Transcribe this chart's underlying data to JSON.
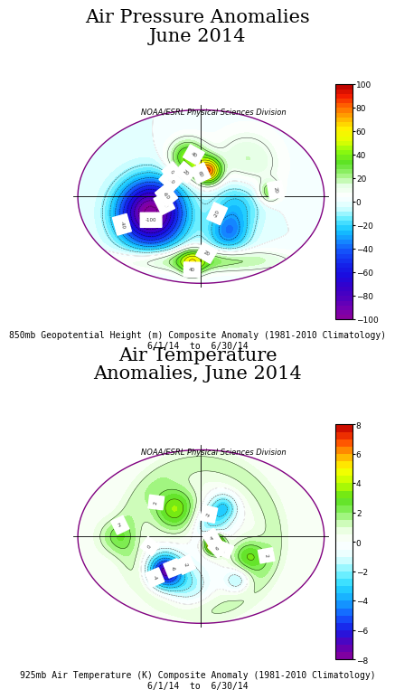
{
  "title1": "Air Pressure Anomalies\nJune 2014",
  "title2": "Air Temperature\nAnomalies, June 2014",
  "subtitle1": "NOAA/ESRL Physical Sciences Division",
  "subtitle2": "NOAA/ESRL Physical Sciences Division",
  "caption1": "850mb Geopotential Height (m) Composite Anomaly (1981-2010 Climatology)\n6/1/14  to  6/30/14",
  "caption2": "925mb Air Temperature (K) Composite Anomaly (1981-2010 Climatology)\n6/1/14  to  6/30/14",
  "cbar1_ticks": [
    100,
    80,
    60,
    40,
    20,
    0,
    -20,
    -40,
    -60,
    -80,
    -100
  ],
  "cbar1_vmin": -100,
  "cbar1_vmax": 100,
  "cbar2_ticks": [
    8,
    6,
    4,
    2,
    0,
    -2,
    -4,
    -6,
    -8
  ],
  "cbar2_vmin": -8,
  "cbar2_vmax": 8,
  "bg_color": "#ffffff",
  "title_fontsize": 15,
  "caption_fontsize": 7,
  "subtitle_fontsize": 6
}
